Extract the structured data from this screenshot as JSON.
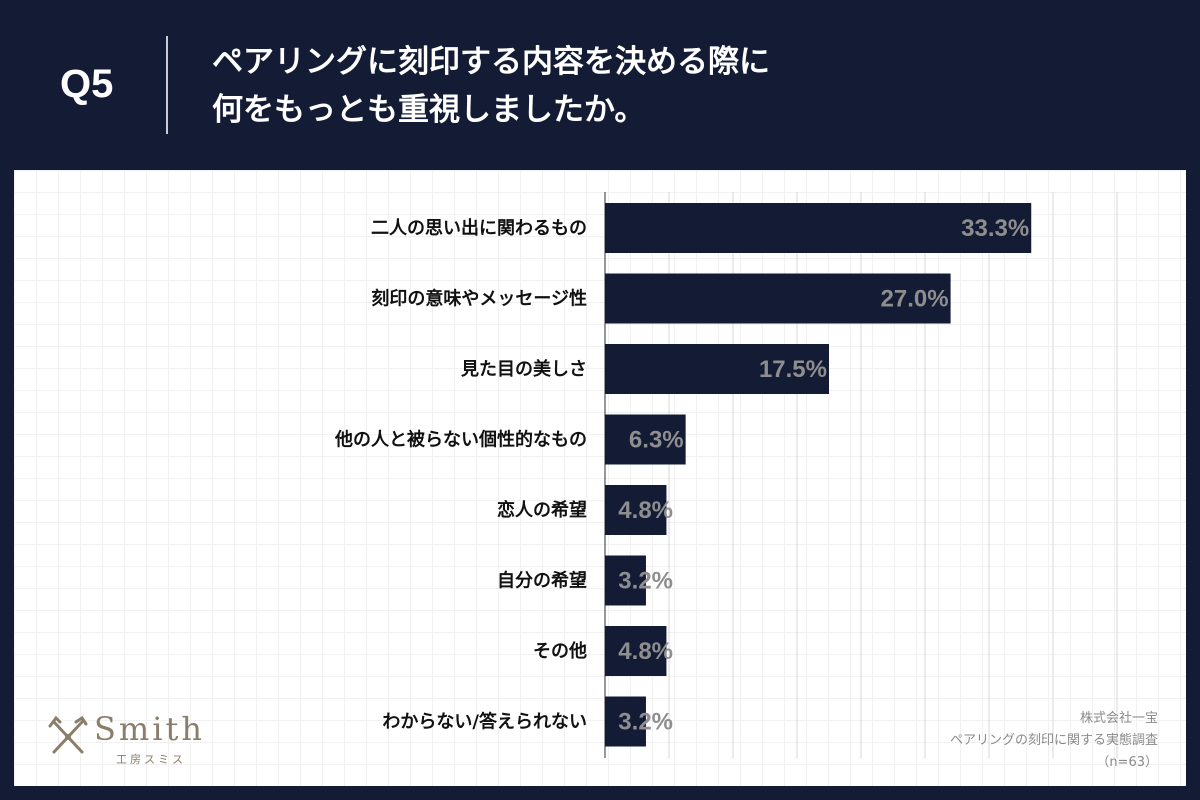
{
  "header": {
    "question_number": "Q5",
    "title_line1": "ペアリングに刻印する内容を決める際に",
    "title_line2": "何をもっとも重視しましたか。"
  },
  "colors": {
    "background": "#141b35",
    "bar": "#141b35",
    "value_label": "#8e8e8e",
    "logo": "#8a7e6a"
  },
  "chart_data": {
    "type": "bar",
    "orientation": "horizontal",
    "categories": [
      "二人の思い出に関わるもの",
      "刻印の意味やメッセージ性",
      "見た目の美しさ",
      "他の人と被らない個性的なもの",
      "恋人の希望",
      "自分の希望",
      "その他",
      "わからない/答えられない"
    ],
    "values": [
      33.3,
      27.0,
      17.5,
      6.3,
      4.8,
      3.2,
      4.8,
      3.2
    ],
    "value_labels": [
      "33.3%",
      "27.0%",
      "17.5%",
      "6.3%",
      "4.8%",
      "3.2%",
      "4.8%",
      "3.2%"
    ],
    "unit": "%",
    "xlim": [
      0,
      40
    ],
    "grid": true,
    "grid_step": 5,
    "title": "ペアリングに刻印する内容を決める際に何をもっとも重視しましたか。"
  },
  "logo": {
    "brand": "Smith",
    "sub": "工房スミス",
    "icon": "crossed-tools-icon"
  },
  "source": {
    "company": "株式会社一宝",
    "survey": "ペアリングの刻印に関する実態調査",
    "sample": "（n=63）"
  }
}
